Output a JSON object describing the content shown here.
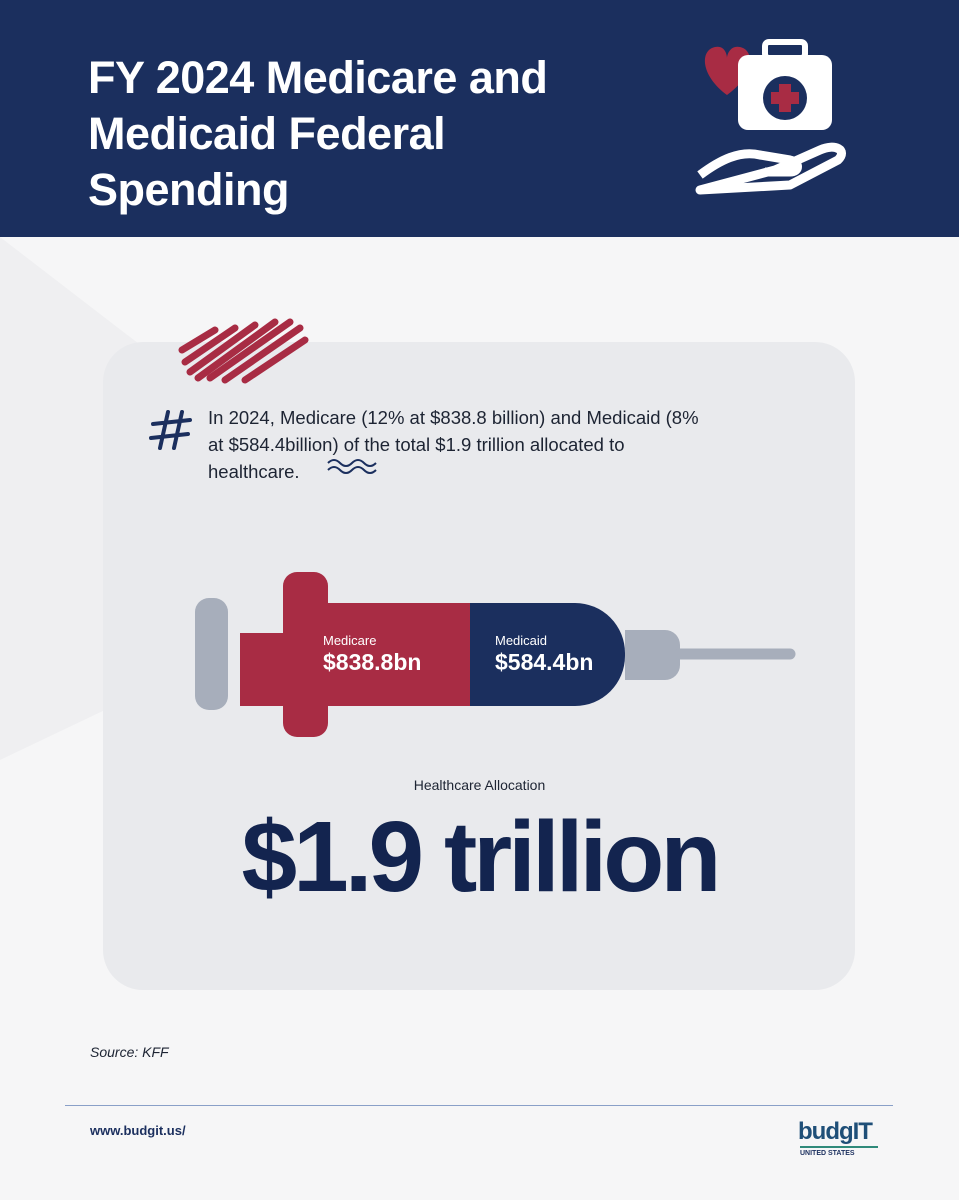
{
  "header": {
    "title": "FY 2024 Medicare and Medicaid Federal Spending"
  },
  "note": "In 2024, Medicare (12% at $838.8 billion) and Medicaid (8% at $584.4billion) of the total $1.9 trillion allocated to healthcare.",
  "syringe": {
    "segments": [
      {
        "label": "Medicare",
        "value": "$838.8bn"
      },
      {
        "label": "Medicaid",
        "value": "$584.4bn"
      }
    ]
  },
  "total": {
    "label": "Healthcare Allocation",
    "value": "$1.9 trillion"
  },
  "source": "Source: KFF",
  "footer": {
    "url": "www.budgit.us/",
    "logo": "budgIT",
    "logo_sub": "UNITED STATES"
  }
}
